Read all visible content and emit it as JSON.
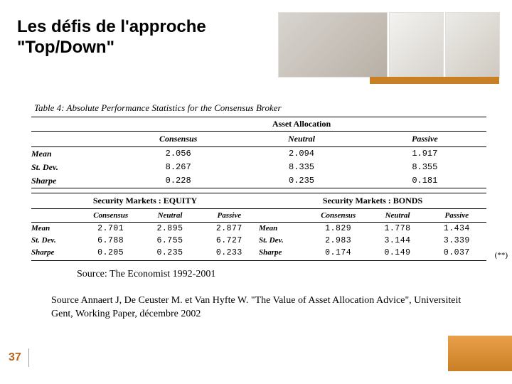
{
  "title_line1": "Les défis de l'approche",
  "title_line2": "\"Top/Down\"",
  "colors": {
    "accent": "#c97f24",
    "accent_light": "#e9a04a",
    "text": "#000000",
    "background": "#ffffff"
  },
  "table_caption": "Table 4: Absolute Performance Statistics for the Consensus Broker",
  "upper_table": {
    "group_header": "Asset Allocation",
    "columns": [
      "Consensus",
      "Neutral",
      "Passive"
    ],
    "rows": [
      {
        "label": "Mean",
        "values": [
          "2.056",
          "2.094",
          "1.917"
        ]
      },
      {
        "label": "St. Dev.",
        "values": [
          "8.267",
          "8.335",
          "8.355"
        ]
      },
      {
        "label": "Sharpe",
        "values": [
          "0.228",
          "0.235",
          "0.181"
        ]
      }
    ]
  },
  "lower_table": {
    "left": {
      "group_header": "Security Markets : EQUITY",
      "columns": [
        "Consensus",
        "Neutral",
        "Passive"
      ],
      "rows": [
        {
          "label": "Mean",
          "values": [
            "2.701",
            "2.895",
            "2.877"
          ]
        },
        {
          "label": "St. Dev.",
          "values": [
            "6.788",
            "6.755",
            "6.727"
          ]
        },
        {
          "label": "Sharpe",
          "values": [
            "0.205",
            "0.235",
            "0.233"
          ]
        }
      ]
    },
    "right": {
      "group_header": "Security Markets : BONDS",
      "columns": [
        "Consensus",
        "Neutral",
        "Passive"
      ],
      "rows": [
        {
          "label": "Mean",
          "values": [
            "1.829",
            "1.778",
            "1.434"
          ]
        },
        {
          "label": "St. Dev.",
          "values": [
            "2.983",
            "3.144",
            "3.339"
          ]
        },
        {
          "label": "Sharpe",
          "values": [
            "0.174",
            "0.149",
            "0.037"
          ]
        }
      ]
    },
    "note": "(**)"
  },
  "source1": "Source: The Economist 1992-2001",
  "source2": "Source  Annaert J,  De Ceuster M. et Van Hyfte W. \"The Value of Asset Allocation Advice\", Universiteit Gent, Working Paper, décembre 2002",
  "page_number": "37"
}
